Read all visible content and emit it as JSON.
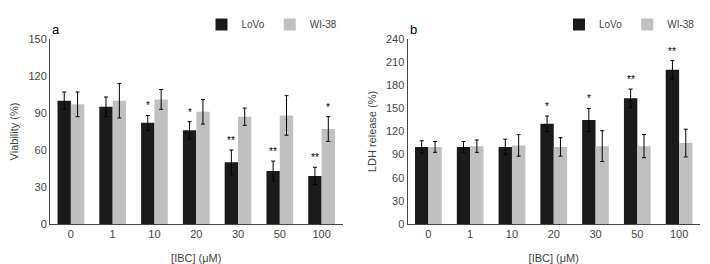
{
  "chart_data": [
    {
      "type": "bar",
      "title": "a",
      "xlabel": "[IBC] (μM)",
      "ylabel": "Viability (%)",
      "categories": [
        "0",
        "1",
        "10",
        "20",
        "30",
        "50",
        "100"
      ],
      "series": [
        {
          "name": "LoVo",
          "color": "#1a1a1a",
          "values": [
            100,
            95,
            82,
            76,
            50,
            43,
            39
          ],
          "errors": [
            7,
            8,
            6,
            7,
            10,
            8,
            7
          ],
          "significance": [
            null,
            null,
            "*",
            "*",
            "**",
            "**",
            "**"
          ]
        },
        {
          "name": "WI-38",
          "color": "#c0c0c0",
          "values": [
            97,
            100,
            101,
            91,
            87,
            88,
            77
          ],
          "errors": [
            10,
            14,
            8,
            10,
            7,
            16,
            10
          ],
          "significance": [
            null,
            null,
            null,
            null,
            null,
            null,
            "*"
          ]
        }
      ],
      "ylim": [
        0,
        150
      ],
      "yticks": [
        0,
        30,
        60,
        90,
        120,
        150
      ],
      "grid": false,
      "legend": "upper right"
    },
    {
      "type": "bar",
      "title": "b",
      "xlabel": "[IBC] (μM)",
      "ylabel": "LDH release (%)",
      "categories": [
        "0",
        "1",
        "10",
        "20",
        "30",
        "50",
        "100"
      ],
      "series": [
        {
          "name": "LoVo",
          "color": "#1a1a1a",
          "values": [
            100,
            100,
            100,
            130,
            135,
            163,
            200
          ],
          "errors": [
            8,
            7,
            10,
            10,
            15,
            12,
            12
          ],
          "significance": [
            null,
            null,
            null,
            "*",
            "*",
            "**",
            "**"
          ]
        },
        {
          "name": "WI-38",
          "color": "#c0c0c0",
          "values": [
            100,
            101,
            102,
            100,
            101,
            101,
            105
          ],
          "errors": [
            7,
            8,
            14,
            12,
            20,
            15,
            18
          ],
          "significance": [
            null,
            null,
            null,
            null,
            null,
            null,
            null
          ]
        }
      ],
      "ylim": [
        0,
        240
      ],
      "yticks": [
        0,
        30,
        60,
        90,
        120,
        150,
        180,
        210,
        240
      ],
      "grid": false,
      "legend": "upper right"
    }
  ]
}
